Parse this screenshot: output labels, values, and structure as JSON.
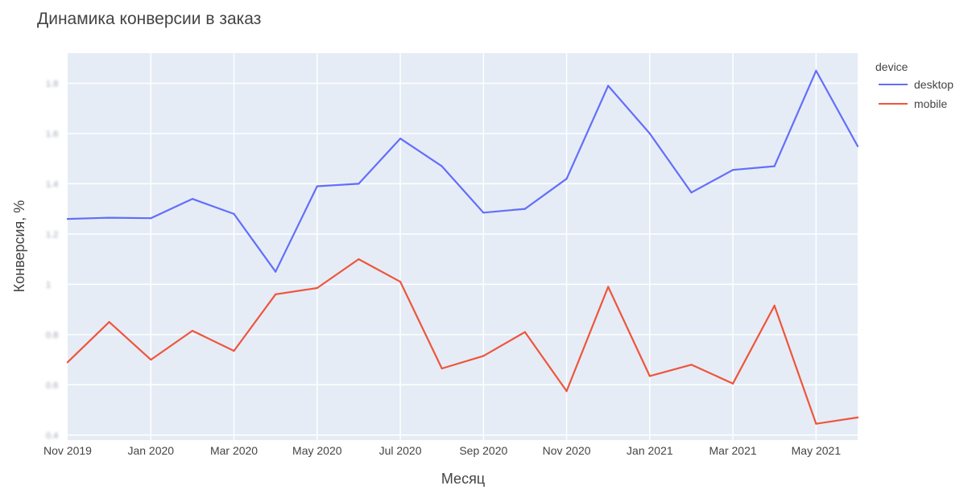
{
  "chart_data": {
    "type": "line",
    "title": "Динамика конверсии в заказ",
    "xlabel": "Месяц",
    "ylabel": "Конверсия, %",
    "x": [
      "2019-11",
      "2019-12",
      "2020-01",
      "2020-02",
      "2020-03",
      "2020-04",
      "2020-05",
      "2020-06",
      "2020-07",
      "2020-08",
      "2020-09",
      "2020-10",
      "2020-11",
      "2020-12",
      "2021-01",
      "2021-02",
      "2021-03",
      "2021-04",
      "2021-05",
      "2021-06"
    ],
    "x_ticks": [
      {
        "x": "2019-11",
        "label": "Nov 2019"
      },
      {
        "x": "2020-01",
        "label": "Jan 2020"
      },
      {
        "x": "2020-03",
        "label": "Mar 2020"
      },
      {
        "x": "2020-05",
        "label": "May 2020"
      },
      {
        "x": "2020-07",
        "label": "Jul 2020"
      },
      {
        "x": "2020-09",
        "label": "Sep 2020"
      },
      {
        "x": "2020-11",
        "label": "Nov 2020"
      },
      {
        "x": "2021-01",
        "label": "Jan 2021"
      },
      {
        "x": "2021-03",
        "label": "Mar 2021"
      },
      {
        "x": "2021-05",
        "label": "May 2021"
      }
    ],
    "y_ticks": [
      0.4,
      0.6,
      0.8,
      1,
      1.2,
      1.4,
      1.6,
      1.8
    ],
    "y_tick_labels": [
      "0.4",
      "0.6",
      "0.8",
      "1",
      "1.2",
      "1.4",
      "1.6",
      "1.8"
    ],
    "ylim": [
      0.38,
      1.92
    ],
    "legend_title": "device",
    "legend_position": "top-right",
    "grid": true,
    "series": [
      {
        "name": "desktop",
        "color": "#636efa",
        "values": [
          1.26,
          1.265,
          1.263,
          1.34,
          1.28,
          1.05,
          1.39,
          1.4,
          1.58,
          1.47,
          1.285,
          1.3,
          1.42,
          1.79,
          1.6,
          1.365,
          1.455,
          1.47,
          1.85,
          1.55
        ]
      },
      {
        "name": "mobile",
        "color": "#ef553b",
        "values": [
          0.69,
          0.85,
          0.7,
          0.815,
          0.735,
          0.96,
          0.985,
          1.1,
          1.01,
          0.665,
          0.715,
          0.81,
          0.575,
          0.99,
          0.635,
          0.68,
          0.605,
          0.915,
          0.445,
          0.47
        ]
      }
    ]
  }
}
